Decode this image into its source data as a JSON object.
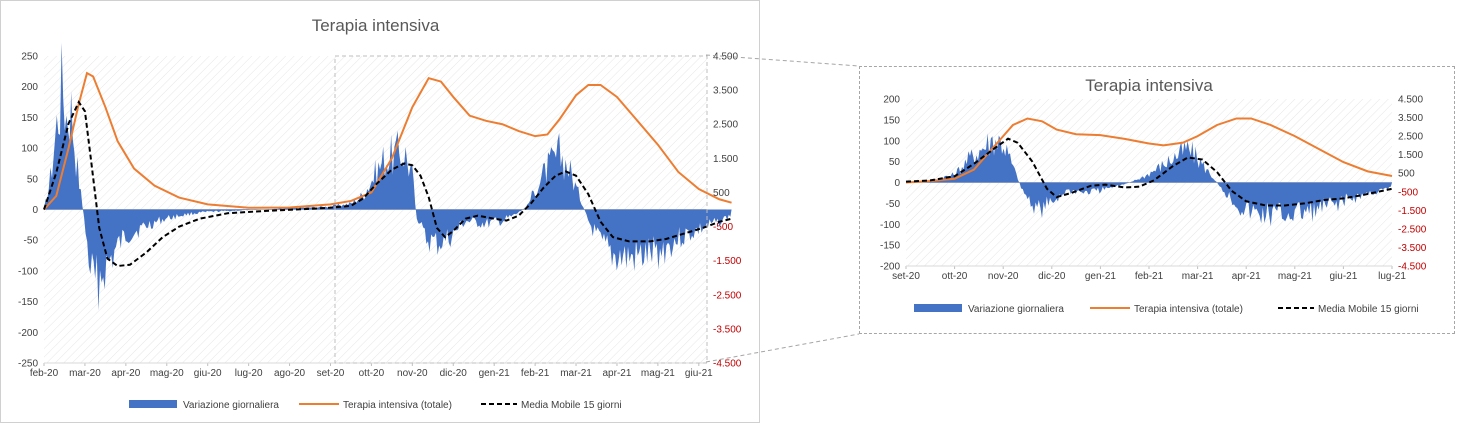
{
  "colors": {
    "bars": "#4472c4",
    "total": "#ed7d31",
    "moving_avg": "#000000",
    "negative_tick": "#c00000"
  },
  "chart_data": [
    {
      "type": "bar+line",
      "title": "Terapia intensiva",
      "xlabel": "",
      "ylabel": "",
      "ylim_left": [
        -250,
        250
      ],
      "ylim_right": [
        -4500,
        4500
      ],
      "left_ticks": [
        "250",
        "200",
        "150",
        "100",
        "50",
        "0",
        "-50",
        "-100",
        "-150",
        "-200",
        "-250"
      ],
      "right_ticks": [
        "4.500",
        "3.500",
        "2.500",
        "1.500",
        "500",
        "-500",
        "-1.500",
        "-2.500",
        "-3.500",
        "-4.500"
      ],
      "x_ticks": [
        "feb-20",
        "mar-20",
        "apr-20",
        "mag-20",
        "giu-20",
        "lug-20",
        "ago-20",
        "set-20",
        "ott-20",
        "nov-20",
        "dic-20",
        "gen-21",
        "feb-21",
        "mar-21",
        "apr-21",
        "mag-21",
        "giu-21"
      ],
      "legend_position": "bottom",
      "grid": "diagonal-hatch",
      "series": [
        {
          "name": "Variazione giornaliera",
          "axis": "left",
          "kind": "bar",
          "points": [
            [
              0,
              0
            ],
            [
              0.15,
              50
            ],
            [
              0.3,
              140
            ],
            [
              0.45,
              220
            ],
            [
              0.55,
              160
            ],
            [
              0.65,
              180
            ],
            [
              0.8,
              80
            ],
            [
              0.95,
              0
            ],
            [
              1.05,
              -60
            ],
            [
              1.15,
              -110
            ],
            [
              1.25,
              -130
            ],
            [
              1.35,
              -120
            ],
            [
              1.5,
              -100
            ],
            [
              1.65,
              -85
            ],
            [
              1.8,
              -65
            ],
            [
              2.0,
              -45
            ],
            [
              2.3,
              -35
            ],
            [
              2.6,
              -25
            ],
            [
              3.0,
              -15
            ],
            [
              3.5,
              -8
            ],
            [
              4.0,
              -4
            ],
            [
              5.0,
              -1
            ],
            [
              6.0,
              2
            ],
            [
              7.0,
              5
            ],
            [
              7.5,
              10
            ],
            [
              7.8,
              25
            ],
            [
              8.0,
              50
            ],
            [
              8.3,
              85
            ],
            [
              8.6,
              95
            ],
            [
              8.8,
              100
            ],
            [
              9.0,
              60
            ],
            [
              9.1,
              -10
            ],
            [
              9.3,
              -50
            ],
            [
              9.6,
              -60
            ],
            [
              9.9,
              -50
            ],
            [
              10.3,
              -20
            ],
            [
              10.8,
              -25
            ],
            [
              11.2,
              -20
            ],
            [
              11.5,
              -10
            ],
            [
              11.8,
              5
            ],
            [
              12.0,
              35
            ],
            [
              12.3,
              70
            ],
            [
              12.6,
              95
            ],
            [
              12.8,
              75
            ],
            [
              13.1,
              20
            ],
            [
              13.3,
              -20
            ],
            [
              13.6,
              -60
            ],
            [
              13.9,
              -80
            ],
            [
              14.3,
              -85
            ],
            [
              14.7,
              -80
            ],
            [
              15.0,
              -75
            ],
            [
              15.5,
              -50
            ],
            [
              16.0,
              -35
            ],
            [
              16.5,
              -20
            ],
            [
              16.8,
              -10
            ]
          ]
        },
        {
          "name": "Terapia intensiva (totale)",
          "axis": "right",
          "kind": "line",
          "points": [
            [
              0,
              0
            ],
            [
              0.3,
              400
            ],
            [
              0.6,
              1800
            ],
            [
              0.85,
              3100
            ],
            [
              1.05,
              4000
            ],
            [
              1.2,
              3900
            ],
            [
              1.5,
              3000
            ],
            [
              1.8,
              2000
            ],
            [
              2.2,
              1200
            ],
            [
              2.7,
              700
            ],
            [
              3.3,
              350
            ],
            [
              4.0,
              150
            ],
            [
              5.0,
              50
            ],
            [
              6.0,
              60
            ],
            [
              7.0,
              150
            ],
            [
              7.5,
              250
            ],
            [
              8.0,
              500
            ],
            [
              8.5,
              1500
            ],
            [
              9.0,
              3000
            ],
            [
              9.4,
              3850
            ],
            [
              9.7,
              3750
            ],
            [
              10.0,
              3300
            ],
            [
              10.4,
              2750
            ],
            [
              10.8,
              2600
            ],
            [
              11.2,
              2500
            ],
            [
              11.6,
              2300
            ],
            [
              12.0,
              2150
            ],
            [
              12.3,
              2200
            ],
            [
              12.6,
              2650
            ],
            [
              13.0,
              3350
            ],
            [
              13.3,
              3650
            ],
            [
              13.6,
              3650
            ],
            [
              14.0,
              3300
            ],
            [
              14.5,
              2600
            ],
            [
              15.0,
              1900
            ],
            [
              15.5,
              1100
            ],
            [
              16.0,
              600
            ],
            [
              16.5,
              300
            ],
            [
              16.8,
              200
            ]
          ]
        },
        {
          "name": "Media Mobile 15 giorni",
          "axis": "left",
          "kind": "dashed-line",
          "points": [
            [
              0,
              0
            ],
            [
              0.3,
              60
            ],
            [
              0.6,
              140
            ],
            [
              0.85,
              175
            ],
            [
              1.0,
              160
            ],
            [
              1.15,
              80
            ],
            [
              1.35,
              -30
            ],
            [
              1.55,
              -80
            ],
            [
              1.8,
              -92
            ],
            [
              2.1,
              -90
            ],
            [
              2.5,
              -70
            ],
            [
              2.9,
              -45
            ],
            [
              3.3,
              -28
            ],
            [
              3.8,
              -15
            ],
            [
              4.5,
              -6
            ],
            [
              5.5,
              -2
            ],
            [
              6.5,
              1
            ],
            [
              7.0,
              3
            ],
            [
              7.5,
              6
            ],
            [
              7.8,
              18
            ],
            [
              8.1,
              40
            ],
            [
              8.5,
              65
            ],
            [
              8.8,
              75
            ],
            [
              9.0,
              72
            ],
            [
              9.2,
              55
            ],
            [
              9.4,
              20
            ],
            [
              9.6,
              -30
            ],
            [
              9.8,
              -45
            ],
            [
              10.0,
              -35
            ],
            [
              10.3,
              -15
            ],
            [
              10.6,
              -10
            ],
            [
              11.0,
              -15
            ],
            [
              11.3,
              -18
            ],
            [
              11.6,
              -10
            ],
            [
              11.9,
              10
            ],
            [
              12.2,
              35
            ],
            [
              12.5,
              55
            ],
            [
              12.75,
              62
            ],
            [
              13.0,
              55
            ],
            [
              13.3,
              25
            ],
            [
              13.6,
              -20
            ],
            [
              13.9,
              -45
            ],
            [
              14.3,
              -52
            ],
            [
              14.8,
              -52
            ],
            [
              15.2,
              -48
            ],
            [
              15.6,
              -40
            ],
            [
              16.1,
              -30
            ],
            [
              16.5,
              -20
            ],
            [
              16.8,
              -15
            ]
          ]
        }
      ]
    },
    {
      "type": "bar+line",
      "title": "Terapia intensiva",
      "xlabel": "",
      "ylabel": "",
      "ylim_left": [
        -200,
        200
      ],
      "ylim_right": [
        -4500,
        4500
      ],
      "left_ticks": [
        "200",
        "150",
        "100",
        "50",
        "0",
        "-50",
        "-100",
        "-150",
        "-200"
      ],
      "right_ticks": [
        "4.500",
        "3.500",
        "2.500",
        "1.500",
        "500",
        "-500",
        "-1.500",
        "-2.500",
        "-3.500",
        "-4.500"
      ],
      "x_ticks": [
        "set-20",
        "ott-20",
        "nov-20",
        "dic-20",
        "gen-21",
        "feb-21",
        "mar-21",
        "apr-21",
        "mag-21",
        "giu-21",
        "lug-21"
      ],
      "legend_position": "bottom",
      "grid": "diagonal-hatch",
      "series": [
        {
          "name": "Variazione giornaliera",
          "axis": "left",
          "kind": "bar",
          "points": [
            [
              0,
              2
            ],
            [
              0.5,
              5
            ],
            [
              1.0,
              20
            ],
            [
              1.3,
              60
            ],
            [
              1.6,
              90
            ],
            [
              1.8,
              110
            ],
            [
              2.0,
              100
            ],
            [
              2.2,
              40
            ],
            [
              2.4,
              -20
            ],
            [
              2.6,
              -55
            ],
            [
              2.8,
              -70
            ],
            [
              3.0,
              -50
            ],
            [
              3.3,
              -20
            ],
            [
              3.7,
              -25
            ],
            [
              4.0,
              -20
            ],
            [
              4.3,
              -10
            ],
            [
              4.6,
              0
            ],
            [
              4.9,
              15
            ],
            [
              5.3,
              45
            ],
            [
              5.6,
              70
            ],
            [
              5.8,
              85
            ],
            [
              6.0,
              60
            ],
            [
              6.3,
              15
            ],
            [
              6.6,
              -30
            ],
            [
              6.9,
              -65
            ],
            [
              7.2,
              -80
            ],
            [
              7.6,
              -82
            ],
            [
              8.0,
              -78
            ],
            [
              8.4,
              -72
            ],
            [
              8.8,
              -55
            ],
            [
              9.2,
              -40
            ],
            [
              9.6,
              -25
            ],
            [
              10.0,
              -15
            ]
          ]
        },
        {
          "name": "Terapia intensiva (totale)",
          "axis": "right",
          "kind": "line",
          "points": [
            [
              0,
              0
            ],
            [
              0.5,
              80
            ],
            [
              1.0,
              200
            ],
            [
              1.4,
              700
            ],
            [
              1.8,
              1900
            ],
            [
              2.2,
              3100
            ],
            [
              2.5,
              3450
            ],
            [
              2.8,
              3300
            ],
            [
              3.1,
              2850
            ],
            [
              3.5,
              2600
            ],
            [
              4.0,
              2550
            ],
            [
              4.5,
              2350
            ],
            [
              5.0,
              2100
            ],
            [
              5.3,
              2000
            ],
            [
              5.7,
              2150
            ],
            [
              6.0,
              2500
            ],
            [
              6.4,
              3100
            ],
            [
              6.8,
              3450
            ],
            [
              7.1,
              3450
            ],
            [
              7.5,
              3100
            ],
            [
              8.0,
              2500
            ],
            [
              8.5,
              1800
            ],
            [
              9.0,
              1100
            ],
            [
              9.5,
              600
            ],
            [
              10.0,
              350
            ]
          ]
        },
        {
          "name": "Media Mobile 15 giorni",
          "axis": "left",
          "kind": "dashed-line",
          "points": [
            [
              0,
              2
            ],
            [
              0.5,
              5
            ],
            [
              1.0,
              15
            ],
            [
              1.4,
              45
            ],
            [
              1.8,
              80
            ],
            [
              2.1,
              105
            ],
            [
              2.3,
              95
            ],
            [
              2.6,
              50
            ],
            [
              2.9,
              -15
            ],
            [
              3.1,
              -35
            ],
            [
              3.4,
              -25
            ],
            [
              3.8,
              -8
            ],
            [
              4.1,
              -5
            ],
            [
              4.5,
              -12
            ],
            [
              4.8,
              -10
            ],
            [
              5.1,
              5
            ],
            [
              5.5,
              40
            ],
            [
              5.8,
              60
            ],
            [
              6.1,
              55
            ],
            [
              6.4,
              25
            ],
            [
              6.7,
              -20
            ],
            [
              7.0,
              -45
            ],
            [
              7.4,
              -55
            ],
            [
              7.8,
              -55
            ],
            [
              8.2,
              -50
            ],
            [
              8.6,
              -42
            ],
            [
              9.0,
              -38
            ],
            [
              9.4,
              -30
            ],
            [
              9.8,
              -20
            ],
            [
              10.0,
              -15
            ]
          ]
        }
      ]
    }
  ]
}
